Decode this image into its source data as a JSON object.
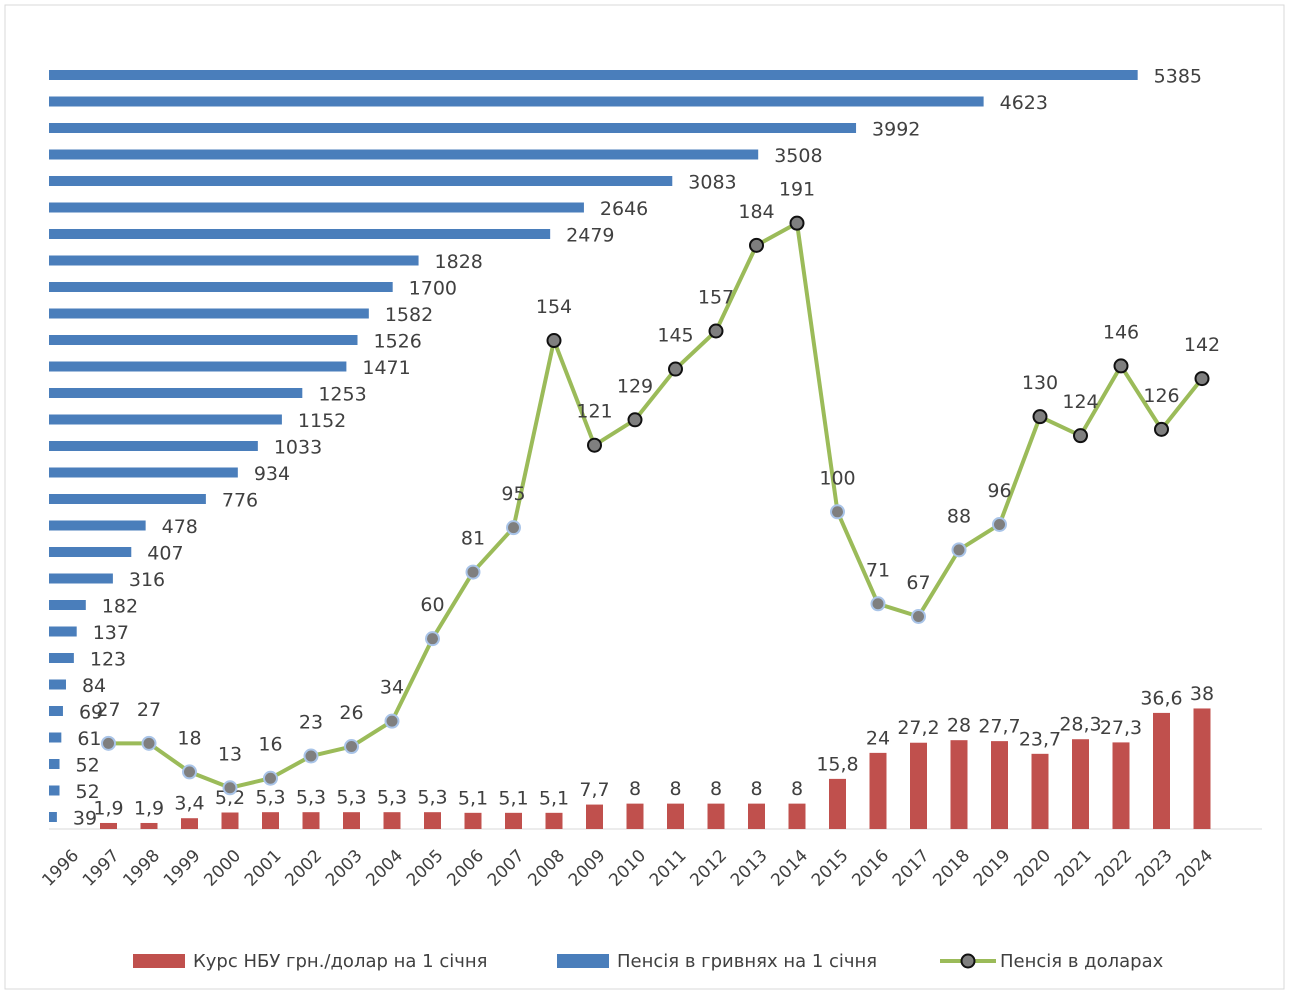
{
  "chart_data": {
    "type": "combo",
    "categories": [
      "1996",
      "1997",
      "1998",
      "1999",
      "2000",
      "2001",
      "2002",
      "2003",
      "2004",
      "2005",
      "2006",
      "2007",
      "2008",
      "2009",
      "2010",
      "2011",
      "2012",
      "2013",
      "2014",
      "2015",
      "2016",
      "2017",
      "2018",
      "2019",
      "2020",
      "2021",
      "2022",
      "2023",
      "2024"
    ],
    "ylim": [
      0,
      250
    ],
    "xlim": [
      0,
      6000
    ],
    "legend": "bottom",
    "series": [
      {
        "name": "Курс НБУ грн./долар на 1 січня",
        "type": "bar",
        "color": "#c0504d",
        "values": [
          null,
          1.9,
          1.9,
          3.4,
          5.2,
          5.3,
          5.3,
          5.3,
          5.3,
          5.3,
          5.1,
          5.1,
          5.1,
          7.7,
          8,
          8,
          8,
          8,
          8,
          15.8,
          24,
          27.2,
          28,
          27.7,
          23.7,
          28.3,
          27.3,
          36.6,
          38
        ],
        "value_labels": [
          null,
          "1,9",
          "1,9",
          "3,4",
          "5,2",
          "5,3",
          "5,3",
          "5,3",
          "5,3",
          "5,3",
          "5,1",
          "5,1",
          "5,1",
          "7,7",
          "8",
          "8",
          "8",
          "8",
          "8",
          "15,8",
          "24",
          "27,2",
          "28",
          "27,7",
          "23,7",
          "28,3",
          "27,3",
          "36,6",
          "38"
        ]
      },
      {
        "name": "Пенсія в гривнях на 1 січня",
        "type": "barh",
        "color": "#4a7ebb",
        "values": [
          39,
          52,
          52,
          61,
          69,
          84,
          123,
          137,
          182,
          316,
          407,
          478,
          776,
          934,
          1033,
          1152,
          1253,
          1471,
          1526,
          1582,
          1700,
          1828,
          2479,
          2646,
          3083,
          3508,
          3992,
          4623,
          5385
        ]
      },
      {
        "name": "Пенсія в доларах",
        "type": "line",
        "color": "#9bbb59",
        "values": [
          null,
          27,
          27,
          18,
          13,
          16,
          23,
          26,
          34,
          60,
          81,
          95,
          154,
          121,
          129,
          145,
          157,
          184,
          191,
          100,
          71,
          67,
          88,
          96,
          130,
          124,
          146,
          126,
          142
        ]
      }
    ]
  }
}
